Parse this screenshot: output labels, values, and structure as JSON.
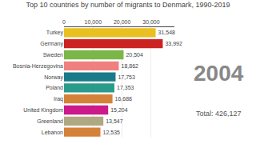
{
  "chart_data": {
    "type": "bar",
    "orientation": "horizontal",
    "title": "Top 10 countries by number of migrants to Denmark, 1990-2019",
    "annotations": [
      "2004",
      "Total: 426,127"
    ],
    "categories": [
      "Lebanon",
      "Greenland",
      "United Kingdom",
      "Iraq",
      "Poland",
      "Norway",
      "Bosnia-Herzegovina",
      "Sweden",
      "Germany",
      "Turkey"
    ],
    "values": [
      12535,
      13547,
      15204,
      16688,
      17353,
      17753,
      18862,
      20504,
      33992,
      31548
    ],
    "value_labels": [
      "12,535",
      "13,547",
      "15,204",
      "16,688",
      "17,353",
      "17,753",
      "18,862",
      "20,504",
      "33,992",
      "31,548"
    ],
    "data_labels": true,
    "colors": [
      "#d4823a",
      "#b0a882",
      "#cc1a8a",
      "#d4823a",
      "#2a9b8a",
      "#1a7a8a",
      "#f08080",
      "#7ab648",
      "#cc2222",
      "#e8c020"
    ],
    "xlim": [
      0,
      38000
    ],
    "xticks": [
      0,
      {
        "value": 10000,
        "label": "10,000"
      },
      {
        "value": 20000,
        "label": "20,000"
      },
      {
        "value": 30000,
        "label": "30,000"
      }
    ],
    "grid": true
  }
}
